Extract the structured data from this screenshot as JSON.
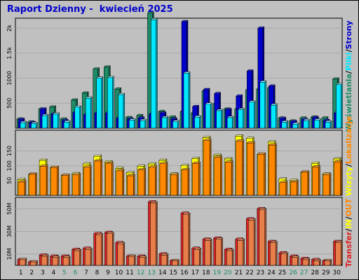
{
  "title": "Raport Dzienny -  kwiecień 2025",
  "colors": {
    "background": "#c0c0c0",
    "wizyty": "#ff8800",
    "wizyty_top": "#ffff00",
    "strony": "#0000cc",
    "strony_side": "#2020aa",
    "pliki": "#00e8ff",
    "wyswietlenia": "#1e8a66",
    "transfer": "#dd2222",
    "in": "#e87f4b",
    "out": "#e87f4b",
    "weekend_day": "#1e8a66",
    "title": "#0000cc"
  },
  "legend": {
    "top": [
      "Wyświetlania",
      "/",
      "Pliki",
      "/",
      "Strony"
    ],
    "middle": [
      "Wizyty",
      "/",
      "Lokalizacje"
    ],
    "bottom": [
      "Transfer",
      "/",
      "IN",
      "/",
      "OUT"
    ]
  },
  "chart_data": [
    {
      "type": "bar",
      "title": "",
      "ylim": [
        0,
        2200
      ],
      "yticks": [
        "500",
        "1000",
        "1.5k",
        "2k"
      ],
      "ytick_values": [
        500,
        1000,
        1500,
        2000
      ],
      "categories": [
        "1",
        "2",
        "3",
        "4",
        "5",
        "6",
        "7",
        "8",
        "9",
        "10",
        "11",
        "12",
        "13",
        "14",
        "15",
        "16",
        "17",
        "18",
        "19",
        "20",
        "21",
        "22",
        "23",
        "24",
        "25",
        "26",
        "27",
        "28",
        "29",
        "30"
      ],
      "series": [
        {
          "name": "Wyświetlania",
          "values": [
            180,
            120,
            380,
            420,
            180,
            560,
            700,
            1180,
            1220,
            780,
            210,
            250,
            2300,
            330,
            220,
            330,
            300,
            740,
            480,
            380,
            380,
            760,
            780,
            800,
            200,
            140,
            200,
            220,
            200,
            980
          ]
        },
        {
          "name": "Strony",
          "values": [
            170,
            110,
            380,
            280,
            150,
            310,
            270,
            300,
            300,
            200,
            180,
            200,
            280,
            300,
            180,
            2130,
            430,
            770,
            690,
            370,
            640,
            1140,
            2000,
            840,
            190,
            130,
            170,
            210,
            150,
            300
          ]
        },
        {
          "name": "Pliki",
          "values": [
            110,
            90,
            250,
            280,
            120,
            420,
            600,
            1000,
            1010,
            670,
            160,
            150,
            2170,
            210,
            130,
            1100,
            220,
            480,
            350,
            210,
            370,
            520,
            920,
            460,
            120,
            80,
            150,
            160,
            120,
            870
          ]
        }
      ]
    },
    {
      "type": "bar",
      "title": "",
      "ylim": [
        0,
        220
      ],
      "yticks": [
        "50",
        "100",
        "150"
      ],
      "ytick_values": [
        50,
        100,
        150
      ],
      "categories": [
        "1",
        "2",
        "3",
        "4",
        "5",
        "6",
        "7",
        "8",
        "9",
        "10",
        "11",
        "12",
        "13",
        "14",
        "15",
        "16",
        "17",
        "18",
        "19",
        "20",
        "21",
        "22",
        "23",
        "24",
        "25",
        "26",
        "27",
        "28",
        "29",
        "30"
      ],
      "series": [
        {
          "name": "Wizyty",
          "values": [
            53,
            71,
            118,
            94,
            67,
            73,
            106,
            132,
            113,
            91,
            76,
            98,
            106,
            118,
            72,
            100,
            124,
            195,
            135,
            123,
            200,
            192,
            139,
            180,
            55,
            50,
            78,
            108,
            72,
            123
          ]
        },
        {
          "name": "Lokalizacje",
          "values": [
            45,
            71,
            98,
            94,
            67,
            69,
            95,
            116,
            107,
            83,
            66,
            86,
            95,
            107,
            69,
            86,
            108,
            185,
            128,
            112,
            183,
            177,
            139,
            170,
            43,
            45,
            78,
            96,
            69,
            113
          ]
        }
      ]
    },
    {
      "type": "bar",
      "title": "",
      "ylim": [
        0,
        60
      ],
      "yticks": [
        "10M",
        "30M",
        "50M"
      ],
      "ytick_values": [
        10,
        30,
        50
      ],
      "categories": [
        "1",
        "2",
        "3",
        "4",
        "5",
        "6",
        "7",
        "8",
        "9",
        "10",
        "11",
        "12",
        "13",
        "14",
        "15",
        "16",
        "17",
        "18",
        "19",
        "20",
        "21",
        "22",
        "23",
        "24",
        "25",
        "26",
        "27",
        "28",
        "29",
        "30"
      ],
      "series": [
        {
          "name": "Transfer",
          "values": [
            5,
            3,
            9,
            8,
            8,
            14,
            15,
            28,
            29,
            20,
            8,
            8,
            56,
            10,
            4,
            46,
            15,
            23,
            24,
            14,
            23,
            41,
            50,
            21,
            11,
            8,
            6,
            5,
            4,
            21
          ]
        },
        {
          "name": "IN",
          "values": [
            5,
            3,
            8,
            7,
            7,
            13,
            14,
            27,
            28,
            19,
            8,
            7,
            55,
            9,
            4,
            45,
            14,
            22,
            23,
            13,
            22,
            40,
            49,
            20,
            10,
            7,
            5,
            4,
            4,
            20
          ]
        }
      ]
    }
  ],
  "x_labels": {
    "weekend_days": [
      "5",
      "6",
      "12",
      "13",
      "19",
      "20",
      "26",
      "27"
    ]
  }
}
